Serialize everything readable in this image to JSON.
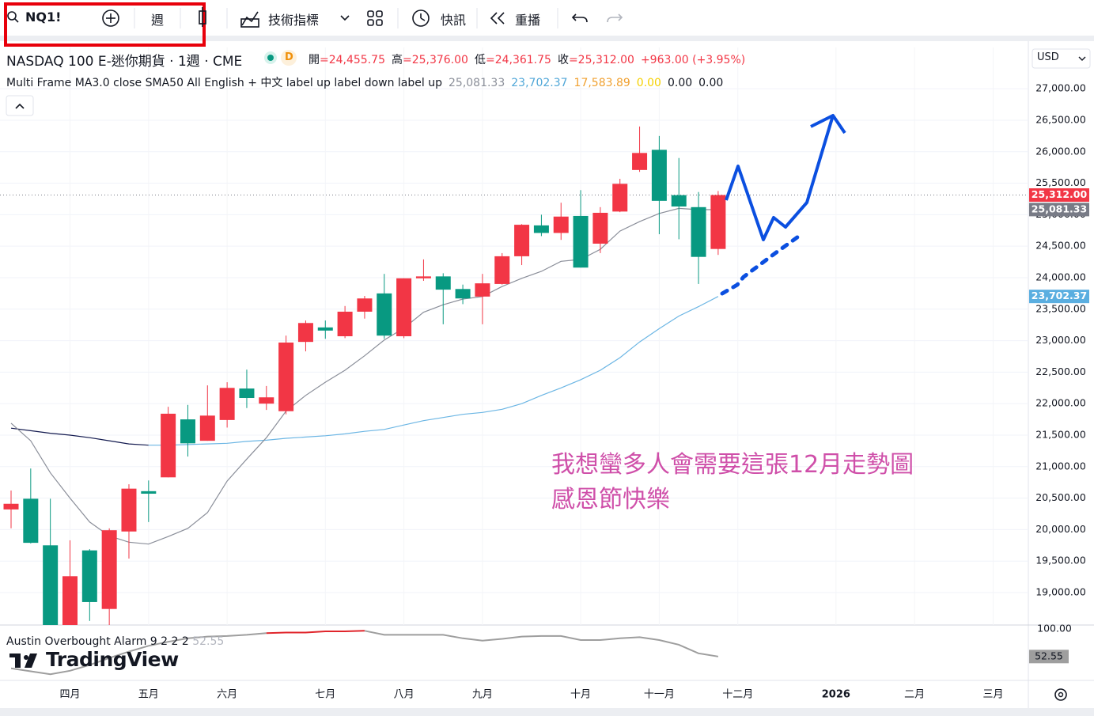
{
  "toolbar": {
    "symbol": "NQ1!",
    "interval": "週",
    "indicators": "技術指標",
    "alerts": "快訊",
    "replay": "重播",
    "currency": "USD"
  },
  "legend": {
    "title": "NASDAQ 100 E-迷你期貨 · 1週 · CME",
    "badge": "D",
    "ohlc": [
      {
        "key": "開",
        "value": "=24,455.75"
      },
      {
        "key": "高",
        "value": "=25,376.00"
      },
      {
        "key": "低",
        "value": "=24,361.75"
      },
      {
        "key": "收",
        "value": "=25,312.00"
      }
    ],
    "change": "+963.00 (+3.95%)",
    "indicator": "Multi Frame MA3.0 close SMA50 All English + 中文 label up label down label up",
    "indicator_values": [
      {
        "text": "25,081.33",
        "color": "#8a8e99"
      },
      {
        "text": "23,702.37",
        "color": "#4fa6d8"
      },
      {
        "text": "17,583.89",
        "color": "#f0a030"
      },
      {
        "text": "0.00",
        "color": "#f5d000"
      },
      {
        "text": "0.00",
        "color": "#131722"
      },
      {
        "text": "0.00",
        "color": "#131722"
      }
    ]
  },
  "annotation": [
    "我想蠻多人會需要這張12月走勢圖",
    "感恩節快樂"
  ],
  "watermark": "TradingView",
  "chart_data": [
    {
      "type": "candlestick",
      "up_color": "#f23645",
      "down_color": "#089981",
      "grid": true,
      "categories": [
        null,
        null,
        null,
        "四月",
        null,
        null,
        null,
        "五月",
        null,
        null,
        null,
        "六月",
        null,
        null,
        null,
        null,
        "七月",
        null,
        null,
        null,
        "八月",
        null,
        null,
        null,
        "九月",
        null,
        null,
        null,
        null,
        "十月",
        null,
        null,
        null,
        "十一月",
        null,
        null,
        null,
        "十二月",
        null,
        null,
        null,
        null,
        "2026",
        null,
        null,
        null,
        "二月",
        null,
        null,
        null,
        "三月"
      ],
      "open": [
        20320,
        20490,
        19750,
        18480,
        19670,
        18740,
        19970,
        20610,
        20830,
        21750,
        21410,
        21740,
        22240,
        22000,
        21880,
        22980,
        23210,
        23070,
        23460,
        23750,
        23070,
        23990,
        24020,
        23820,
        23700,
        23900,
        24340,
        24830,
        24710,
        24980,
        24540,
        25050,
        25710,
        26030,
        25310,
        25120,
        24455.75,
        null,
        null,
        null,
        null,
        null,
        null,
        null,
        null,
        null,
        null,
        null,
        null,
        null,
        null
      ],
      "high": [
        20620,
        20970,
        20490,
        19830,
        19690,
        20020,
        20720,
        20780,
        21950,
        21980,
        22290,
        22340,
        22540,
        22280,
        23080,
        23320,
        23320,
        23550,
        23710,
        24060,
        23990,
        24290,
        24070,
        23890,
        24060,
        24390,
        24850,
        25000,
        25190,
        25390,
        25120,
        25570,
        26400,
        26250,
        25900,
        25360,
        25376,
        null,
        null,
        null,
        null,
        null,
        null,
        null,
        null,
        null,
        null,
        null,
        null,
        null,
        null
      ],
      "low": [
        20020,
        19780,
        18400,
        18400,
        18550,
        18480,
        19540,
        20120,
        20830,
        21160,
        21410,
        21620,
        21930,
        21900,
        21830,
        22830,
        23030,
        23040,
        23350,
        23030,
        23040,
        23950,
        23260,
        23580,
        23260,
        23890,
        24200,
        24660,
        24600,
        24160,
        24390,
        25040,
        25680,
        24690,
        24610,
        23900,
        24361.75,
        null,
        null,
        null,
        null,
        null,
        null,
        null,
        null,
        null,
        null,
        null,
        null,
        null,
        null
      ],
      "close": [
        20410,
        19790,
        18480,
        19260,
        18850,
        19990,
        20650,
        20570,
        21840,
        21370,
        21810,
        22250,
        22090,
        22100,
        22970,
        23280,
        23160,
        23460,
        23670,
        23080,
        23990,
        24020,
        23810,
        23670,
        23910,
        24340,
        24840,
        24710,
        24970,
        24160,
        25030,
        25490,
        25980,
        25220,
        25130,
        24330,
        25312,
        null,
        null,
        null,
        null,
        null,
        null,
        null,
        null,
        null,
        null,
        null,
        null,
        null,
        null
      ],
      "lines": [
        {
          "color": "#131a4f",
          "values": [
            21610,
            21570,
            21530,
            21500,
            21460,
            21410,
            21360,
            21340,
            null,
            null,
            null,
            null,
            null,
            null,
            null,
            null,
            null,
            null,
            null,
            null,
            null,
            null,
            null,
            null,
            null,
            null,
            null,
            null,
            null,
            null,
            null,
            null,
            null,
            null,
            null,
            null,
            null,
            null,
            null,
            null,
            null,
            null,
            null,
            null,
            null,
            null,
            null,
            null,
            null,
            null,
            null
          ]
        },
        {
          "color": "#6cb6e4",
          "values": [
            null,
            null,
            null,
            null,
            null,
            null,
            null,
            21340,
            21340,
            21350,
            21360,
            21370,
            21400,
            21420,
            21450,
            21470,
            21490,
            21520,
            21560,
            21590,
            21660,
            21730,
            21780,
            21830,
            21860,
            21910,
            22000,
            22130,
            22250,
            22380,
            22530,
            22730,
            22980,
            23190,
            23390,
            23540,
            23702.37,
            null,
            null,
            null,
            null,
            null,
            null,
            null,
            null,
            null,
            null,
            null,
            null,
            null,
            null
          ]
        },
        {
          "color": "#8a8e99",
          "values": [
            21690,
            21410,
            20900,
            20500,
            20120,
            19900,
            19800,
            19770,
            19890,
            20020,
            20270,
            20770,
            21120,
            21460,
            21880,
            22130,
            22340,
            22530,
            22760,
            23010,
            23200,
            23450,
            23570,
            23660,
            23700,
            23860,
            23990,
            24100,
            24260,
            24290,
            24450,
            24740,
            24890,
            25020,
            25100,
            25080,
            25081.33,
            null,
            null,
            null,
            null,
            null,
            null,
            null,
            null,
            null,
            null,
            null,
            null,
            null,
            null
          ]
        }
      ],
      "price_labels": [
        {
          "value": 25312,
          "label": "25,312.00",
          "color": "#f23645"
        },
        {
          "value": 25081.33,
          "label": "25,081.33",
          "color": "#787b86"
        },
        {
          "value": 23702.37,
          "label": "23,702.37",
          "color": "#5aaee0"
        }
      ],
      "ylim": [
        18485,
        27655
      ],
      "yticks": [
        {
          "value": 19000,
          "label": "19,000.00"
        },
        {
          "value": 19500,
          "label": "19,500.00"
        },
        {
          "value": 20000,
          "label": "20,000.00"
        },
        {
          "value": 20500,
          "label": "20,500.00"
        },
        {
          "value": 21000,
          "label": "21,000.00"
        },
        {
          "value": 21500,
          "label": "21,500.00"
        },
        {
          "value": 22000,
          "label": "22,000.00"
        },
        {
          "value": 22500,
          "label": "22,500.00"
        },
        {
          "value": 23000,
          "label": "23,000.00"
        },
        {
          "value": 23500,
          "label": "23,500.00"
        },
        {
          "value": 24000,
          "label": "24,000.00"
        },
        {
          "value": 24500,
          "label": "24,500.00"
        },
        {
          "value": 25000,
          "label": "25,000.00"
        },
        {
          "value": 25500,
          "label": "25,500.00"
        },
        {
          "value": 26000,
          "label": "26,000.00"
        },
        {
          "value": 26500,
          "label": "26,500.00"
        },
        {
          "value": 27000,
          "label": "27,000.00"
        }
      ]
    },
    {
      "type": "line",
      "title": "Austin Overbought Alarm 9 2 2 2",
      "series": [
        {
          "color": "#9e9e9e",
          "values": [
            32,
            27,
            22,
            28,
            38,
            50,
            61,
            71,
            78,
            84,
            87,
            88,
            90,
            93,
            null,
            null,
            null,
            null,
            97,
            90,
            90,
            90,
            90,
            84,
            80,
            83,
            87,
            88,
            88,
            81,
            81,
            84,
            86,
            81,
            73,
            58,
            52.55,
            null,
            null,
            null,
            null,
            null,
            null,
            null,
            null,
            null,
            null,
            null,
            null,
            null,
            null
          ]
        },
        {
          "color": "#e0252b",
          "values": [
            null,
            null,
            null,
            null,
            null,
            null,
            null,
            null,
            null,
            null,
            null,
            null,
            null,
            93,
            94,
            94,
            96,
            96,
            97,
            null,
            null,
            null,
            null,
            null,
            null,
            null,
            null,
            null,
            null,
            null,
            null,
            null,
            null,
            null,
            null,
            null,
            null,
            null,
            null,
            null,
            null,
            null,
            null,
            null,
            null,
            null,
            null,
            null,
            null,
            null,
            null
          ]
        }
      ],
      "ylim": [
        14,
        107
      ],
      "yticks": [
        {
          "value": 100,
          "label": "100.00"
        }
      ]
    }
  ]
}
